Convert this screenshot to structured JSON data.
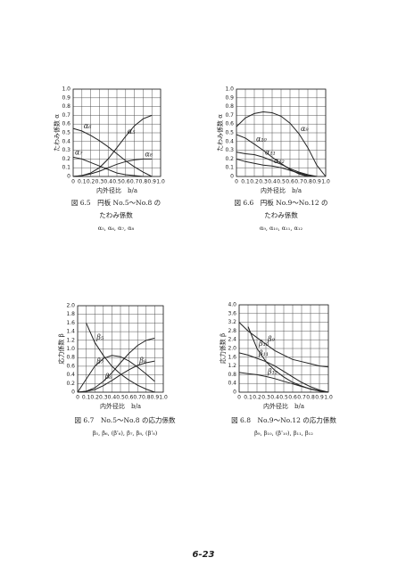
{
  "chart_data": [
    {
      "type": "line",
      "x_label": "内外径比　b/a",
      "y_label": "たわみ係数 α",
      "caption_lines": [
        "図 6.5　円板 No.5～No.8 の",
        "たわみ係数",
        "α₅, α₆, α₇, α₈"
      ],
      "x": [
        0,
        0.1,
        0.2,
        0.3,
        0.4,
        0.5,
        0.6,
        0.7,
        0.8,
        0.9
      ],
      "xlim": [
        0,
        1
      ],
      "xticks": [
        0,
        0.1,
        0.2,
        0.3,
        0.4,
        0.5,
        0.6,
        0.7,
        0.8,
        0.9,
        {
          "value": 1,
          "label": "1.0"
        }
      ],
      "ylim": [
        0,
        1
      ],
      "yticks": [
        0,
        0.1,
        0.2,
        0.3,
        0.4,
        0.5,
        0.6,
        0.7,
        0.8,
        0.9,
        {
          "value": 1,
          "label": "1.0"
        }
      ],
      "grid": true,
      "series": [
        {
          "name": "α₅",
          "color": "#222",
          "values": [
            0,
            0.01,
            0.04,
            0.1,
            0.2,
            0.33,
            0.46,
            0.58,
            0.66,
            0.7
          ]
        },
        {
          "name": "α₆",
          "color": "#222",
          "values": [
            0.55,
            0.52,
            0.47,
            0.41,
            0.34,
            0.26,
            0.18,
            0.11,
            0.05,
            0
          ]
        },
        {
          "name": "α₇",
          "color": "#222",
          "values": [
            0.22,
            0.2,
            0.16,
            0.12,
            0.08,
            0.04,
            0.02,
            0.01,
            0,
            0
          ]
        },
        {
          "name": "α₈",
          "color": "#222",
          "values": [
            0,
            0.01,
            0.03,
            0.06,
            0.1,
            0.14,
            0.17,
            0.19,
            0.2,
            0.2
          ]
        }
      ]
    },
    {
      "type": "line",
      "x_label": "内外径比　b/a",
      "y_label": "たわみ係数 α",
      "caption_lines": [
        "図 6.6　円板 No.9～No.12 の",
        "たわみ係数",
        "α₉, α₁₀, α₁₁, α₁₂"
      ],
      "x": [
        0,
        0.1,
        0.2,
        0.3,
        0.4,
        0.5,
        0.6,
        0.7,
        0.8,
        0.9,
        1
      ],
      "xlim": [
        0,
        1
      ],
      "xticks": [
        0,
        0.1,
        0.2,
        0.3,
        0.4,
        0.5,
        0.6,
        0.7,
        0.8,
        0.9,
        {
          "value": 1,
          "label": "1.0"
        }
      ],
      "ylim": [
        0,
        1
      ],
      "yticks": [
        0,
        0.1,
        0.2,
        0.3,
        0.4,
        0.5,
        0.6,
        0.7,
        0.8,
        0.9,
        {
          "value": 1,
          "label": "1.0"
        }
      ],
      "grid": true,
      "series": [
        {
          "name": "α₉",
          "color": "#222",
          "values": [
            0.57,
            0.67,
            0.72,
            0.74,
            0.73,
            0.69,
            0.61,
            0.49,
            0.33,
            0.13,
            0
          ]
        },
        {
          "name": "α₁₀",
          "color": "#222",
          "values": [
            0.48,
            0.44,
            0.37,
            0.3,
            0.22,
            0.15,
            0.08,
            0.03,
            0,
            null,
            null
          ]
        },
        {
          "name": "α₁₁",
          "color": "#222",
          "values": [
            0.28,
            0.26,
            0.25,
            0.22,
            0.18,
            0.14,
            0.09,
            0.05,
            0.02,
            0,
            null
          ]
        },
        {
          "name": "α₁₂",
          "color": "#222",
          "values": [
            0.2,
            0.17,
            0.15,
            0.13,
            0.12,
            0.1,
            0.07,
            0.04,
            0.01,
            0,
            null
          ]
        }
      ]
    },
    {
      "type": "line",
      "x_label": "内外径比　b/a",
      "y_label": "応力係数 β",
      "caption_lines": [
        "図 6.7　No.5～No.8 の応力係数",
        "β₅, β₆, (β'₆), β₇, β₈, (β'₈)"
      ],
      "x": [
        0,
        0.1,
        0.2,
        0.3,
        0.4,
        0.5,
        0.6,
        0.7,
        0.8,
        0.9
      ],
      "xlim": [
        0,
        1
      ],
      "xticks": [
        0,
        0.1,
        0.2,
        0.3,
        0.4,
        0.5,
        0.6,
        0.7,
        0.8,
        0.9,
        {
          "value": 1,
          "label": "1.0"
        }
      ],
      "ylim": [
        0,
        2
      ],
      "yticks": [
        0,
        0.2,
        0.4,
        0.6,
        0.8,
        {
          "value": 1,
          "label": "1.0"
        },
        1.2,
        1.4,
        1.6,
        1.8,
        {
          "value": 2,
          "label": "2.0"
        }
      ],
      "grid": true,
      "series": [
        {
          "name": "β₅",
          "color": "#222",
          "values": [
            null,
            1.6,
            1.15,
            0.85,
            0.6,
            0.42,
            0.28,
            0.16,
            0.07,
            0
          ]
        },
        {
          "name": "β₆",
          "color": "#222",
          "values": [
            0,
            0.02,
            0.1,
            0.25,
            0.45,
            0.68,
            0.9,
            1.08,
            1.2,
            1.25
          ]
        },
        {
          "name": "β₇",
          "color": "#222",
          "values": [
            0,
            0.3,
            0.6,
            0.78,
            0.85,
            0.82,
            0.72,
            0.58,
            0.42,
            0.25
          ]
        },
        {
          "name": "β₈",
          "color": "#222",
          "values": [
            0,
            0.02,
            0.06,
            0.15,
            0.27,
            0.4,
            0.52,
            0.62,
            0.68,
            0.72
          ]
        }
      ]
    },
    {
      "type": "line",
      "x_label": "内外径比　b/a",
      "y_label": "応力係数 β",
      "caption_lines": [
        "図 6.8　No.9～No.12 の応力係数",
        "β₉, β₁₀, (β'₁₀), β₁₁, β₁₂"
      ],
      "x": [
        0,
        0.1,
        0.2,
        0.3,
        0.4,
        0.5,
        0.6,
        0.7,
        0.8,
        0.9,
        1
      ],
      "xlim": [
        0,
        1
      ],
      "xticks": [
        0,
        0.1,
        0.2,
        0.3,
        0.4,
        0.5,
        0.6,
        0.7,
        0.8,
        0.9,
        {
          "value": 1,
          "label": "1.0"
        }
      ],
      "ylim": [
        0,
        4
      ],
      "yticks": [
        0,
        0.4,
        0.8,
        1.2,
        1.6,
        {
          "value": 2,
          "label": "2.0"
        },
        2.4,
        2.8,
        3.2,
        3.6,
        {
          "value": 4,
          "label": "4.0"
        }
      ],
      "grid": true,
      "series": [
        {
          "name": "β₉",
          "color": "#222",
          "values": [
            3.2,
            2.8,
            2.5,
            2.2,
            1.9,
            1.7,
            1.5,
            1.4,
            1.3,
            1.2,
            1.15
          ]
        },
        {
          "name": "β₁₀",
          "color": "#222",
          "values": [
            null,
            3,
            2,
            1.4,
            1,
            0.7,
            0.45,
            0.28,
            0.14,
            0.05,
            0
          ]
        },
        {
          "name": "β₁₁",
          "color": "#222",
          "values": [
            1.8,
            1.7,
            1.55,
            1.4,
            1.2,
            0.95,
            0.7,
            0.45,
            0.25,
            0.1,
            0
          ]
        },
        {
          "name": "β₁₂",
          "color": "#222",
          "values": [
            0.9,
            0.85,
            0.8,
            0.72,
            0.62,
            0.5,
            0.38,
            0.26,
            0.15,
            0.06,
            0
          ]
        }
      ]
    }
  ],
  "page_number": "6-23"
}
